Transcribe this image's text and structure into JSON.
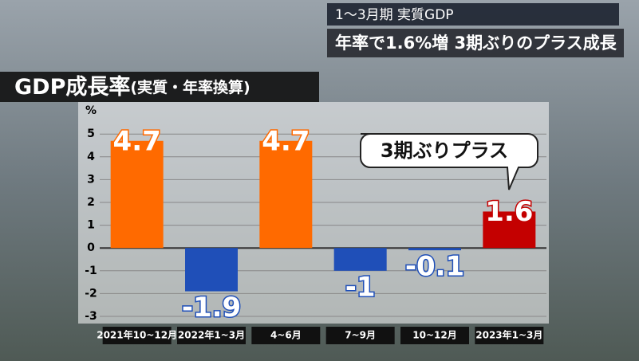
{
  "header": {
    "line1": "1～3月期 実質GDP",
    "line2": "年率で1.6%増 3期ぶりのプラス成長"
  },
  "chart_data": {
    "type": "bar",
    "title": "GDP成長率",
    "subtitle": "(実質・年率換算)",
    "y_unit": "%",
    "categories": [
      "2021年10~12月",
      "2022年1~3月",
      "4~6月",
      "7~9月",
      "10~12月",
      "2023年1~3月"
    ],
    "values": [
      4.7,
      -1.9,
      4.7,
      -1.0,
      -0.1,
      1.6
    ],
    "colors": [
      "#ff6a00",
      "#1f4fb8",
      "#ff6a00",
      "#1f4fb8",
      "#1f4fb8",
      "#c40000"
    ],
    "ylim": [
      -3,
      6
    ],
    "yticks": [
      -3,
      -2,
      -1,
      0,
      1,
      2,
      3,
      4,
      5
    ],
    "grid": true,
    "annotation": "3期ぶりプラス"
  }
}
